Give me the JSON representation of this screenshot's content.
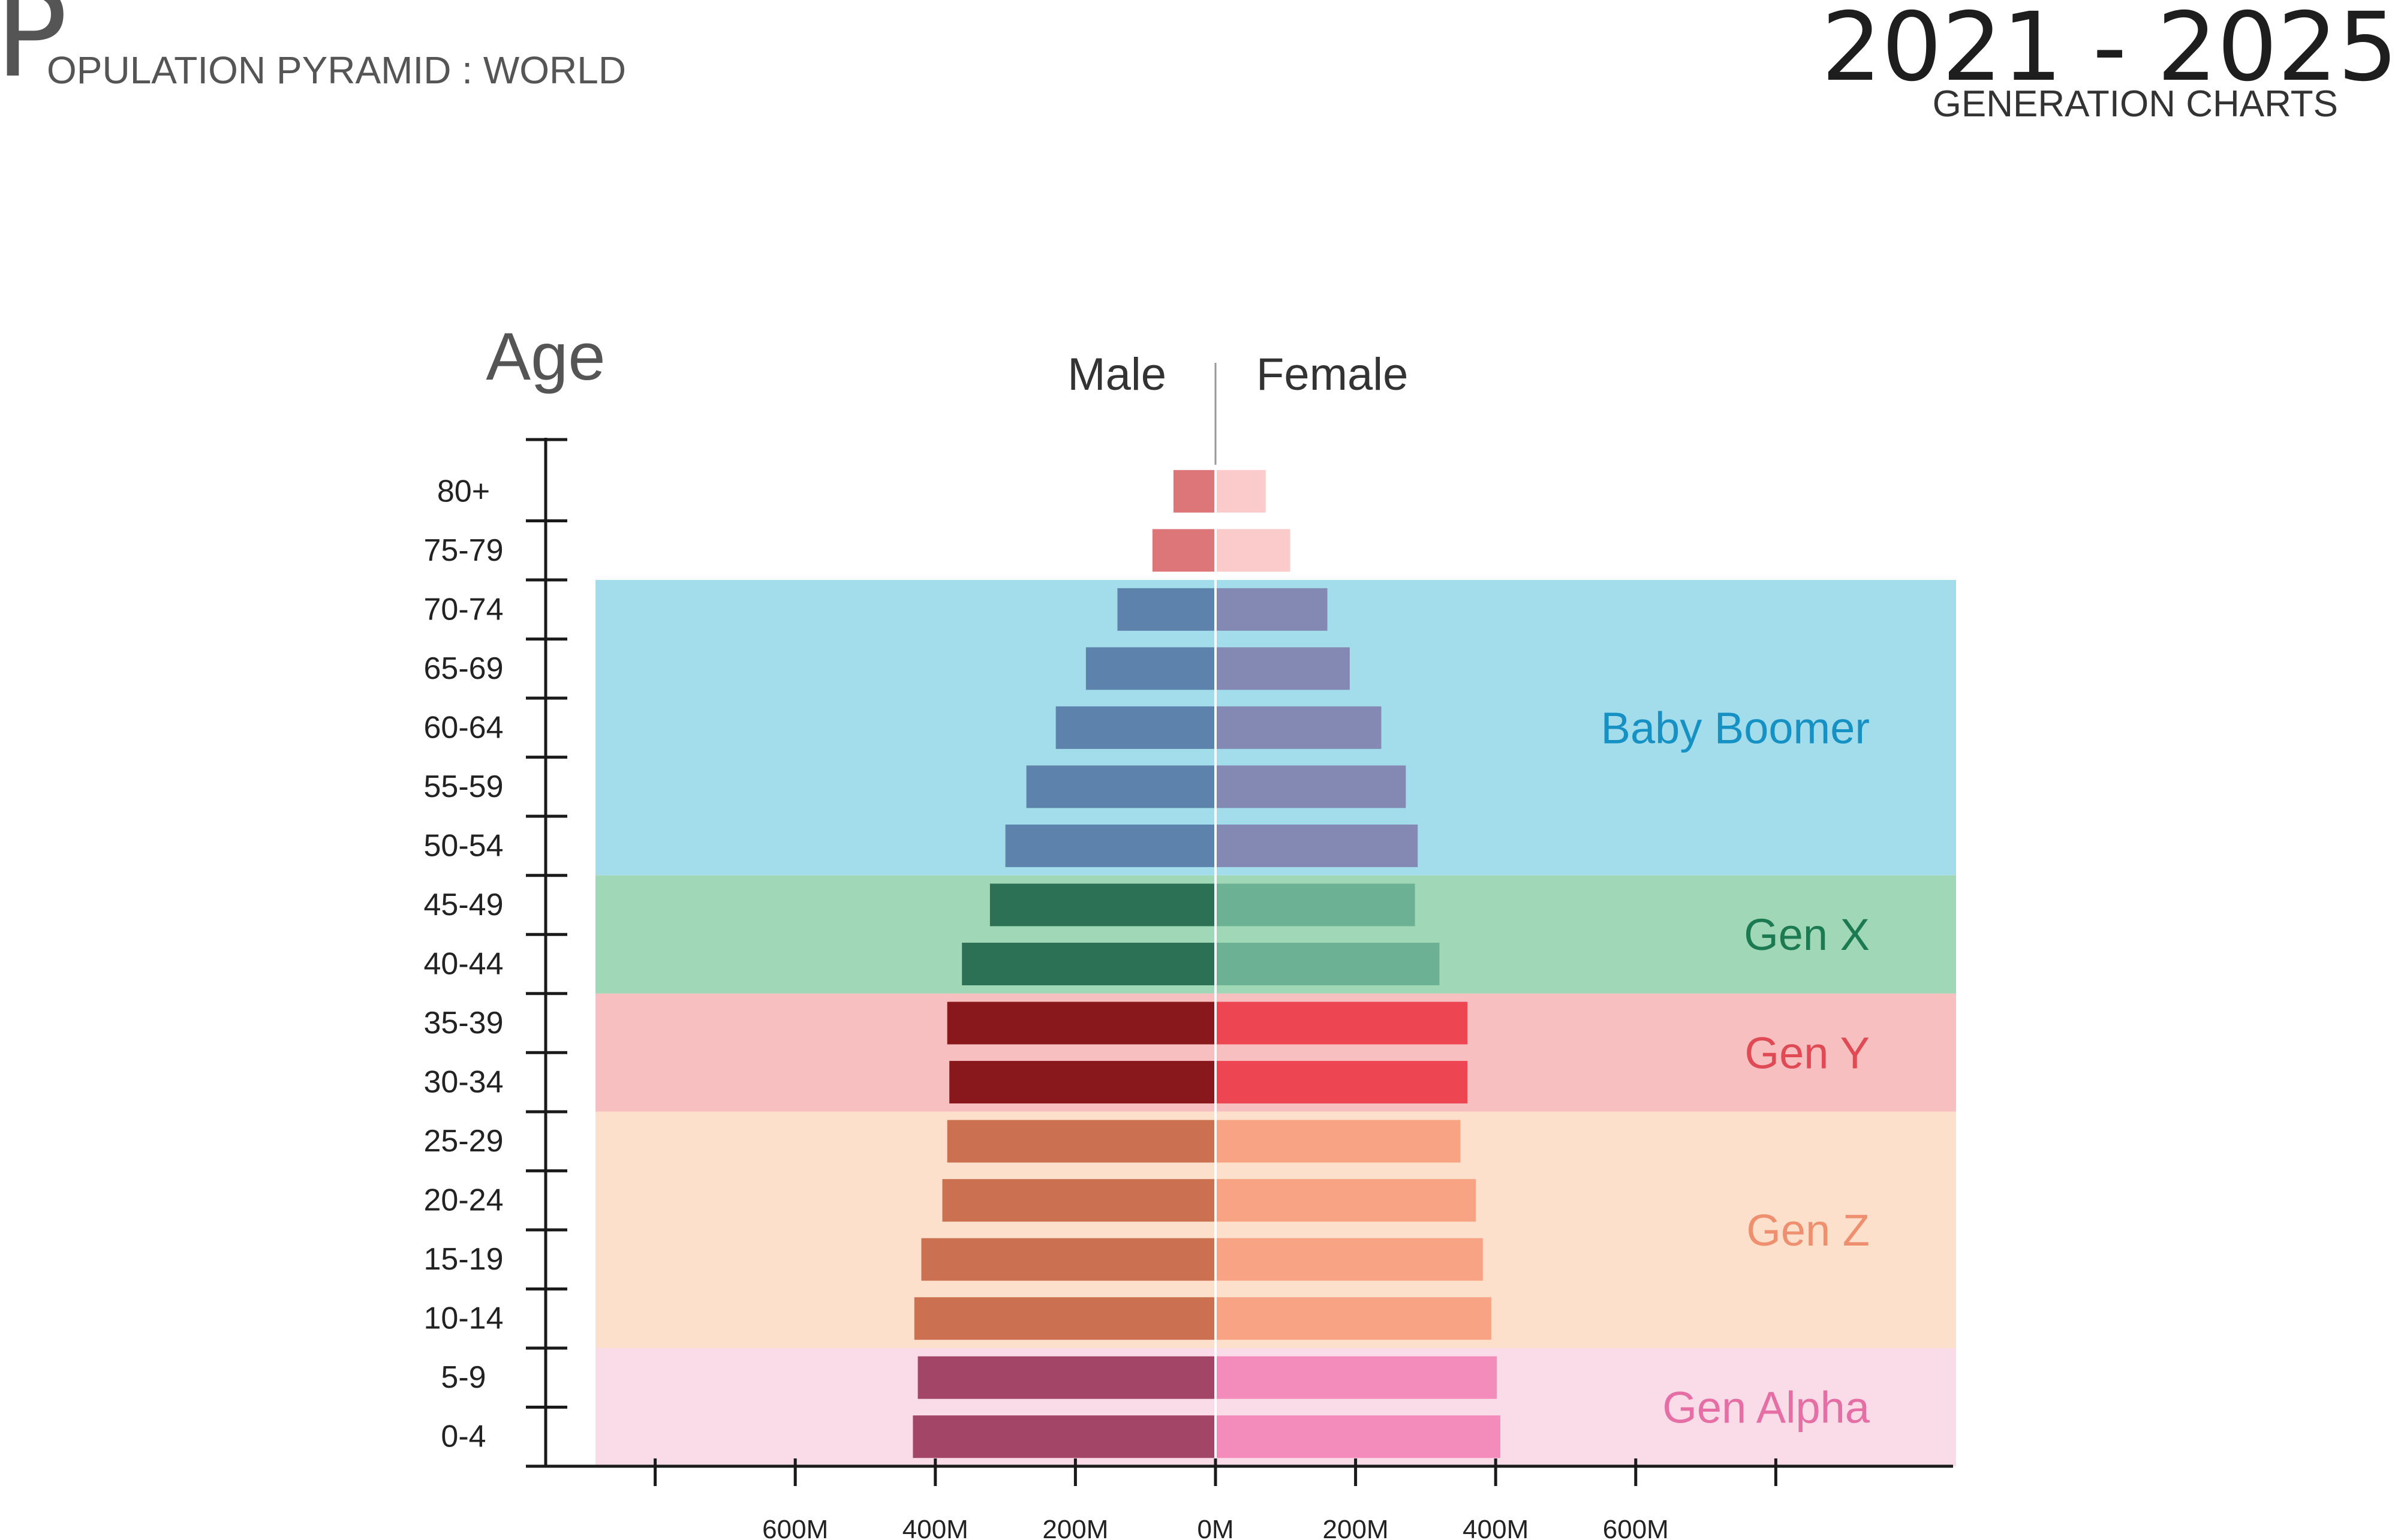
{
  "header": {
    "title_initial": "P",
    "title_rest": "OPULATION PYRAMID : WORLD",
    "range": "2021 - 2025",
    "subtitle": "GENERATION CHARTS"
  },
  "chart_data": {
    "type": "bar",
    "orientation": "horizontal-diverging",
    "ylabel": "Age",
    "categories": [
      "80+",
      "75-79",
      "70-74",
      "65-69",
      "60-64",
      "55-59",
      "50-54",
      "45-49",
      "40-44",
      "35-39",
      "30-34",
      "25-29",
      "20-24",
      "15-19",
      "10-14",
      "5-9",
      "0-4"
    ],
    "series": [
      {
        "name": "Male",
        "side": "left",
        "values": [
          60,
          90,
          140,
          185,
          228,
          270,
          300,
          322,
          362,
          383,
          380,
          383,
          390,
          420,
          430,
          425,
          432
        ]
      },
      {
        "name": "Female",
        "side": "right",
        "values": [
          70,
          105,
          158,
          190,
          235,
          270,
          287,
          283,
          318,
          358,
          358,
          348,
          370,
          380,
          392,
          400,
          405
        ]
      }
    ],
    "xlim": [
      -800,
      1000
    ],
    "x_ticks": [
      -600,
      -400,
      -200,
      0,
      200,
      400,
      600
    ],
    "x_tick_labels": [
      "600M",
      "400M",
      "200M",
      "0M",
      "200M",
      "400M",
      "600M"
    ],
    "generations": [
      {
        "name": "Baby Boomer",
        "from": "70-74",
        "to": "50-54",
        "band_color": "#a3dcea",
        "label_color": "#1591c4",
        "male_color": "#5d82ab",
        "female_color": "#8389b3"
      },
      {
        "name": "Gen X",
        "from": "45-49",
        "to": "40-44",
        "band_color": "#a0d7b6",
        "label_color": "#1c7a52",
        "male_color": "#2c7056",
        "female_color": "#6cb193"
      },
      {
        "name": "Gen Y",
        "from": "35-39",
        "to": "30-34",
        "band_color": "#f7bfbf",
        "label_color": "#e04a54",
        "male_color": "#89181c",
        "female_color": "#ee4553"
      },
      {
        "name": "Gen Z",
        "from": "25-29",
        "to": "10-14",
        "band_color": "#fde0cc",
        "label_color": "#ee9070",
        "male_color": "#cb7152",
        "female_color": "#f7a384"
      },
      {
        "name": "Gen Alpha",
        "from": "5-9",
        "to": "0-4",
        "band_color": "#fadbe8",
        "label_color": "#e56ea5",
        "male_color": "#a24567",
        "female_color": "#f38cbb"
      }
    ],
    "ungrouped_colors": {
      "male": "#dc7679",
      "female": "#fbcbcb"
    },
    "colors": {
      "axis": "#1a1a1a",
      "center_line": "#999999",
      "text": "#333333"
    }
  }
}
